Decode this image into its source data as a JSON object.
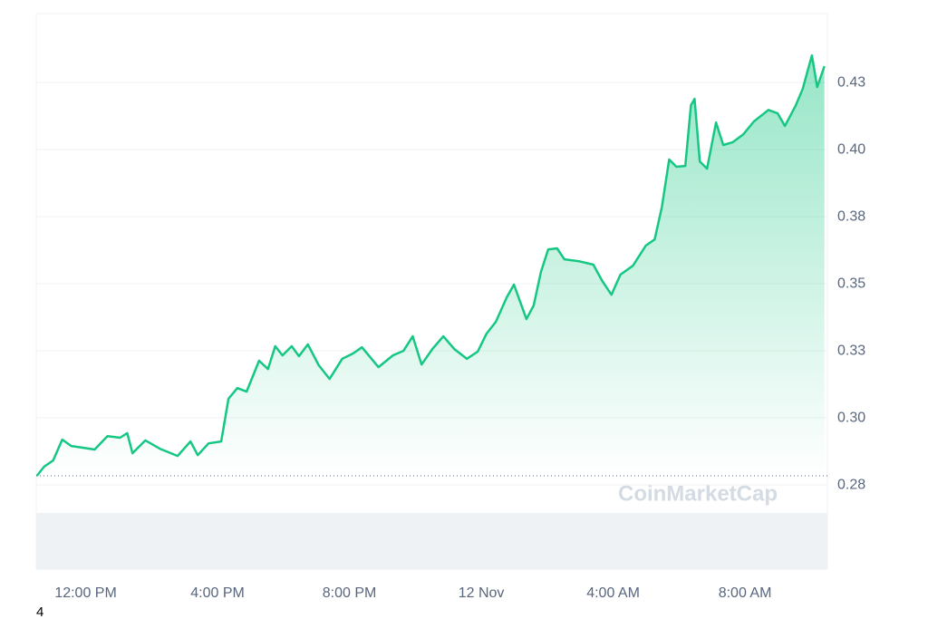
{
  "chart_data": {
    "type": "area",
    "watermark": "CoinMarketCap",
    "footnote": "4",
    "color": "#16c784",
    "grid": true,
    "xlim": [
      -1.5,
      22.5
    ],
    "xticks": [
      {
        "value": 0,
        "label": "12:00 PM"
      },
      {
        "value": 4,
        "label": "4:00 PM"
      },
      {
        "value": 8,
        "label": "8:00 PM"
      },
      {
        "value": 12,
        "label": "12 Nov"
      },
      {
        "value": 16,
        "label": "4:00 AM"
      },
      {
        "value": 20,
        "label": "8:00 AM"
      }
    ],
    "ylim": [
      0.2436,
      0.4507
    ],
    "yticks": [
      {
        "value": 0.275,
        "label": "0.28"
      },
      {
        "value": 0.3,
        "label": "0.30"
      },
      {
        "value": 0.325,
        "label": "0.33"
      },
      {
        "value": 0.35,
        "label": "0.35"
      },
      {
        "value": 0.375,
        "label": "0.38"
      },
      {
        "value": 0.4,
        "label": "0.40"
      },
      {
        "value": 0.425,
        "label": "0.43"
      }
    ],
    "x": [
      -1.48,
      -1.26,
      -0.99,
      -0.71,
      -0.44,
      -0.11,
      0.27,
      0.66,
      1.04,
      1.26,
      1.42,
      1.81,
      2.25,
      2.79,
      3.18,
      3.4,
      3.73,
      4.11,
      4.33,
      4.6,
      4.88,
      5.26,
      5.53,
      5.75,
      5.97,
      6.25,
      6.47,
      6.74,
      7.07,
      7.4,
      7.78,
      8.11,
      8.38,
      8.88,
      9.32,
      9.64,
      9.92,
      10.19,
      10.52,
      10.85,
      11.18,
      11.56,
      11.89,
      12.16,
      12.44,
      12.77,
      12.99,
      13.37,
      13.59,
      13.81,
      14.03,
      14.3,
      14.52,
      14.96,
      15.4,
      15.67,
      15.95,
      16.22,
      16.6,
      16.99,
      17.26,
      17.48,
      17.7,
      17.92,
      18.19,
      18.36,
      18.47,
      18.63,
      18.85,
      19.12,
      19.34,
      19.62,
      19.95,
      20.27,
      20.71,
      20.99,
      21.21,
      21.53,
      21.75,
      22.03,
      22.19,
      22.41
    ],
    "values": [
      0.2784,
      0.2818,
      0.2841,
      0.2919,
      0.2895,
      0.2889,
      0.2882,
      0.2932,
      0.2926,
      0.2943,
      0.2868,
      0.2916,
      0.2885,
      0.2858,
      0.2912,
      0.2861,
      0.2905,
      0.2912,
      0.3071,
      0.3111,
      0.3098,
      0.3213,
      0.3182,
      0.3267,
      0.3233,
      0.3267,
      0.323,
      0.3274,
      0.3196,
      0.3145,
      0.322,
      0.324,
      0.3263,
      0.3189,
      0.3233,
      0.325,
      0.3304,
      0.3199,
      0.3257,
      0.3304,
      0.3257,
      0.322,
      0.3247,
      0.3314,
      0.3358,
      0.3449,
      0.3497,
      0.3368,
      0.3419,
      0.3544,
      0.3628,
      0.3632,
      0.3591,
      0.3584,
      0.3571,
      0.351,
      0.3459,
      0.3534,
      0.3567,
      0.3642,
      0.3665,
      0.3787,
      0.3963,
      0.3936,
      0.3939,
      0.4165,
      0.4189,
      0.3956,
      0.3929,
      0.4101,
      0.4017,
      0.4027,
      0.4057,
      0.4105,
      0.4148,
      0.4135,
      0.4088,
      0.4162,
      0.4226,
      0.4351,
      0.4233,
      0.4311
    ]
  }
}
